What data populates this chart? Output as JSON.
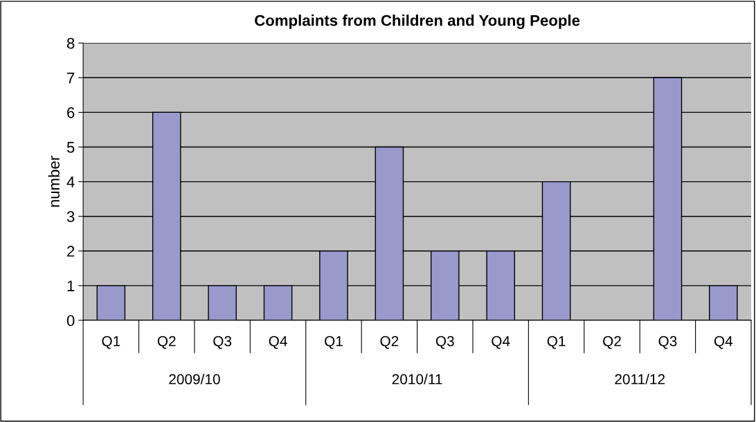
{
  "chart_data": {
    "type": "bar",
    "title": "Complaints from Children and Young People",
    "ylabel": "number",
    "categories": [
      "Q1",
      "Q2",
      "Q3",
      "Q4",
      "Q1",
      "Q2",
      "Q3",
      "Q4",
      "Q1",
      "Q2",
      "Q3",
      "Q4"
    ],
    "values": [
      1,
      6,
      1,
      1,
      2,
      5,
      2,
      2,
      4,
      0,
      7,
      1
    ],
    "color": "#9999cc",
    "annotations": [
      "2009/10",
      "2010/11",
      "2011/12"
    ],
    "ylim": [
      0,
      8
    ],
    "yticks": [
      0,
      1,
      2,
      3,
      4,
      5,
      6,
      7,
      8
    ],
    "grid": "y"
  }
}
